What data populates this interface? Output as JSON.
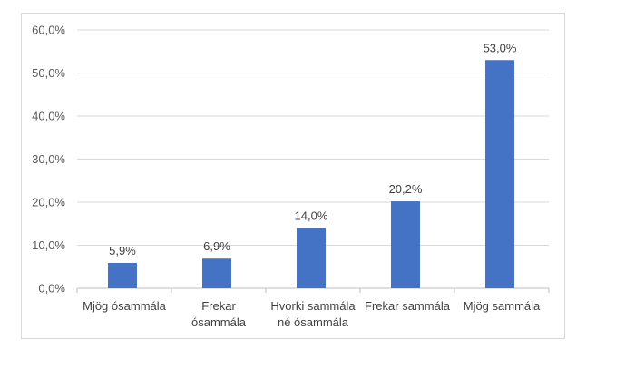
{
  "chart_data": {
    "type": "bar",
    "categories": [
      [
        "Mjög ósammála"
      ],
      [
        "Frekar",
        "ósammála"
      ],
      [
        "Hvorki sammála",
        "né ósammála"
      ],
      [
        "Frekar sammála"
      ],
      [
        "Mjög sammála"
      ]
    ],
    "values": [
      5.9,
      6.9,
      14.0,
      20.2,
      53.0
    ],
    "data_labels": [
      "5,9%",
      "6,9%",
      "14,0%",
      "20,2%",
      "53,0%"
    ],
    "y_ticks": [
      "0,0%",
      "10,0%",
      "20,0%",
      "30,0%",
      "40,0%",
      "50,0%",
      "60,0%"
    ],
    "ylim": [
      0,
      60
    ],
    "y_unit": "%",
    "grid": true,
    "legend": "none",
    "bar_color": "#4472c4"
  }
}
